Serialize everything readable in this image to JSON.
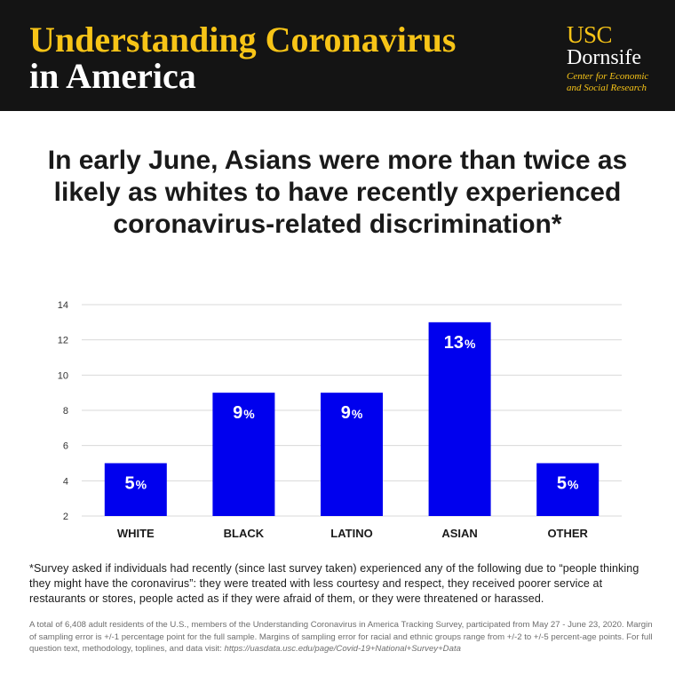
{
  "header": {
    "title_line1": "Understanding Coronavirus",
    "title_line2": "in America",
    "logo": {
      "usc": "USC",
      "dornsife": "Dornsife",
      "center_line1": "Center for Economic",
      "center_line2": "and Social Research"
    }
  },
  "subtitle": "In early June, Asians were more than twice as likely as whites to have recently experienced coronavirus-related discrimination*",
  "chart_data": {
    "type": "bar",
    "categories": [
      "WHITE",
      "BLACK",
      "LATINO",
      "ASIAN",
      "OTHER"
    ],
    "values": [
      5,
      9,
      9,
      13,
      5
    ],
    "value_labels": [
      "5",
      "9",
      "9",
      "13",
      "5"
    ],
    "value_suffix": "%",
    "ylim": [
      2,
      14
    ],
    "yticks": [
      2,
      4,
      6,
      8,
      10,
      12,
      14
    ],
    "grid": true,
    "bar_color": "#0000ee",
    "label_color": "#ffffff"
  },
  "footnote": "*Survey asked if individuals had recently (since last survey taken) experienced any of the following due to “people thinking they might have the coronavirus”: they were treated with less courtesy and respect, they received poorer service at restaurants or stores, people acted as if they were afraid of them, or they were threatened or harassed.",
  "methodology": {
    "text": "A total of 6,408 adult residents of the U.S., members of the Understanding Coronavirus in America Tracking Survey, participated from May 27 - June 23, 2020. Margin of sampling error is +/-1 percentage point for the full sample. Margins of sampling error for racial and ethnic groups range from +/-2 to +/-5 percent-age points. For full question text, methodology, toplines, and data visit: ",
    "url": "https://uasdata.usc.edu/page/Covid-19+National+Survey+Data"
  },
  "colors": {
    "header_bg": "#141414",
    "accent_yellow": "#f7c417",
    "bar_blue": "#0000ee"
  }
}
